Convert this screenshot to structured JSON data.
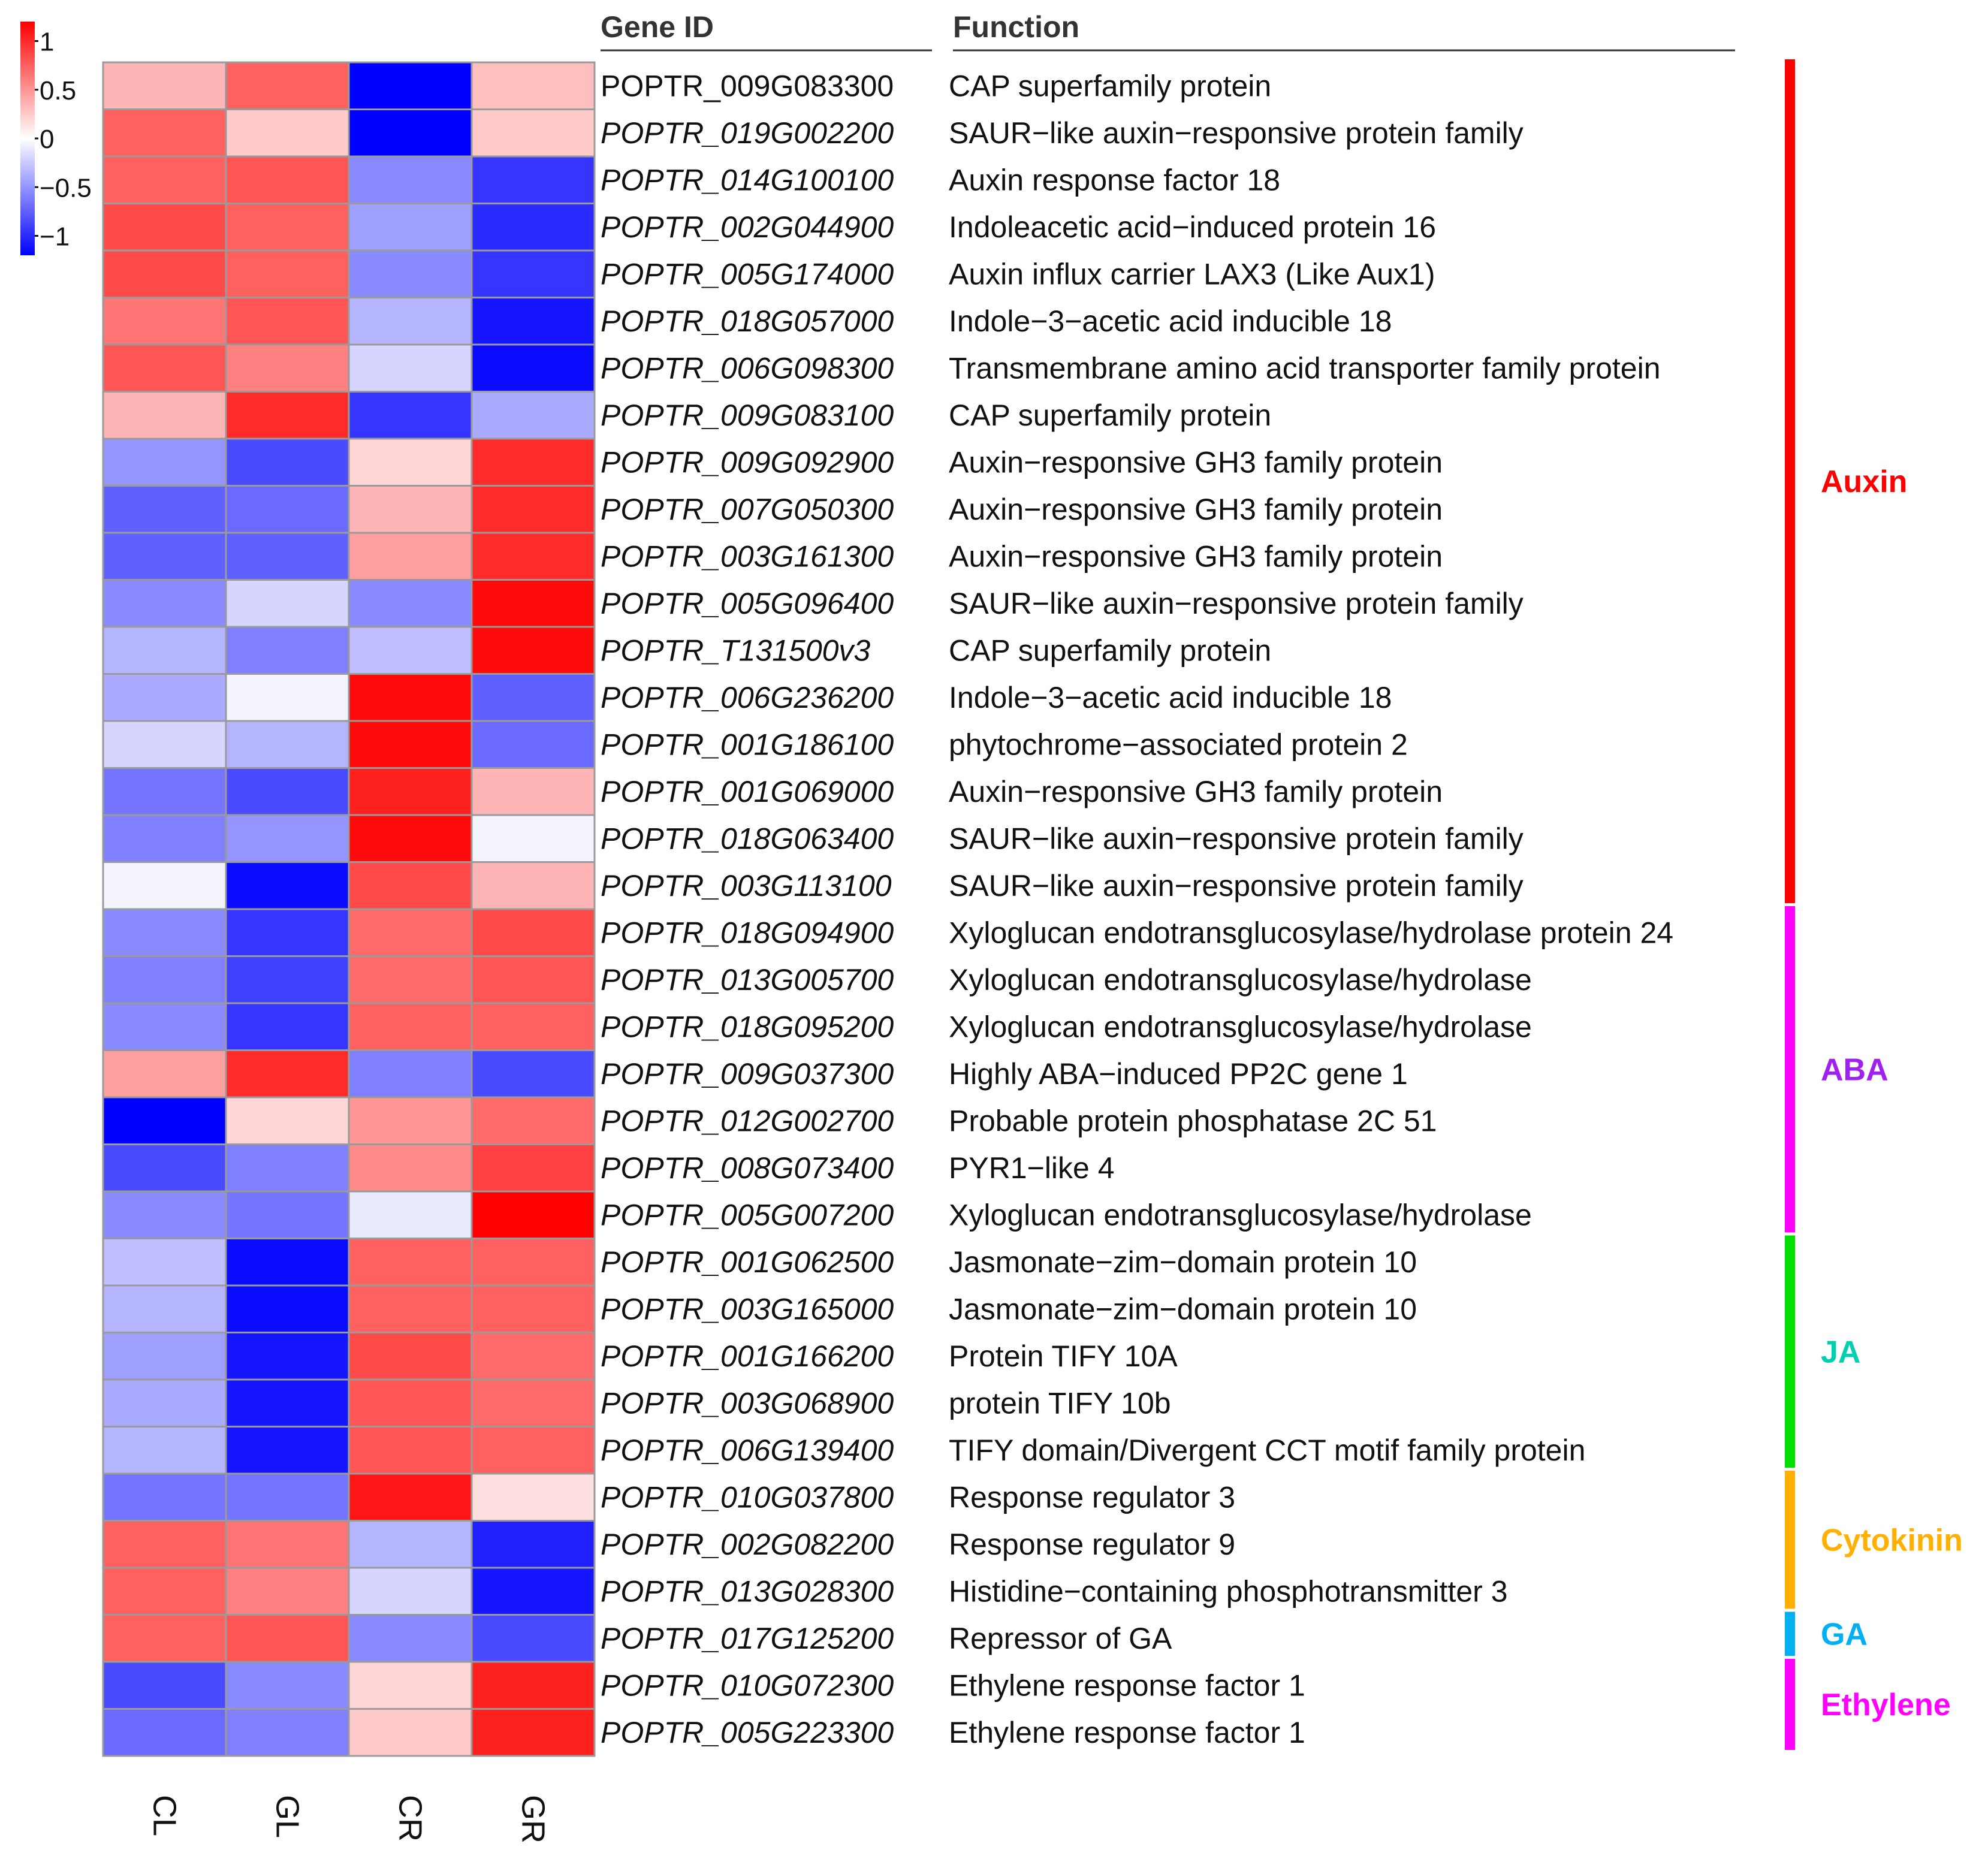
{
  "chart_data": {
    "type": "heatmap",
    "columns": [
      "CL",
      "GL",
      "CR",
      "GR"
    ],
    "header": {
      "gene_id": "Gene ID",
      "function": "Function"
    },
    "legend": {
      "ticks": [
        "1",
        "0.5",
        "0",
        "−0.5",
        "−1"
      ],
      "range": [
        -1.2,
        1.2
      ],
      "low_color": "#0000ff",
      "mid_color": "#ffffff",
      "high_color": "#ff0000"
    },
    "rows": [
      {
        "gene_id": "POPTR_009G083300",
        "italic": false,
        "function": "CAP superfamily protein",
        "values": [
          0.35,
          0.75,
          -1.2,
          0.3
        ]
      },
      {
        "gene_id": "POPTR_019G002200",
        "italic": true,
        "function": "SAUR−like auxin−responsive protein family",
        "values": [
          0.75,
          0.25,
          -1.2,
          0.25
        ]
      },
      {
        "gene_id": "POPTR_014G100100",
        "italic": true,
        "function": "Auxin response factor 18",
        "values": [
          0.75,
          0.8,
          -0.55,
          -0.95
        ]
      },
      {
        "gene_id": "POPTR_002G044900",
        "italic": true,
        "function": "Indoleacetic acid−induced protein 16",
        "values": [
          0.85,
          0.75,
          -0.45,
          -1.0
        ]
      },
      {
        "gene_id": "POPTR_005G174000",
        "italic": true,
        "function": "Auxin influx carrier LAX3 (Like Aux1)",
        "values": [
          0.85,
          0.75,
          -0.55,
          -0.95
        ]
      },
      {
        "gene_id": "POPTR_018G057000",
        "italic": true,
        "function": "Indole−3−acetic acid inducible 18",
        "values": [
          0.65,
          0.8,
          -0.35,
          -1.1
        ]
      },
      {
        "gene_id": "POPTR_006G098300",
        "italic": true,
        "function": "Transmembrane amino acid transporter family protein",
        "values": [
          0.8,
          0.6,
          -0.2,
          -1.15
        ]
      },
      {
        "gene_id": "POPTR_009G083100",
        "italic": true,
        "function": "CAP superfamily protein",
        "values": [
          0.35,
          1.0,
          -0.95,
          -0.4
        ]
      },
      {
        "gene_id": "POPTR_009G092900",
        "italic": true,
        "function": "Auxin−responsive GH3 family protein",
        "values": [
          -0.5,
          -0.85,
          0.2,
          1.0
        ]
      },
      {
        "gene_id": "POPTR_007G050300",
        "italic": true,
        "function": "Auxin−responsive GH3 family protein",
        "values": [
          -0.75,
          -0.7,
          0.35,
          1.0
        ]
      },
      {
        "gene_id": "POPTR_003G161300",
        "italic": true,
        "function": "Auxin−responsive GH3 family protein",
        "values": [
          -0.75,
          -0.75,
          0.45,
          1.0
        ]
      },
      {
        "gene_id": "POPTR_005G096400",
        "italic": true,
        "function": "SAUR−like auxin−responsive protein family",
        "values": [
          -0.55,
          -0.2,
          -0.55,
          1.15
        ]
      },
      {
        "gene_id": "POPTR_T131500v3",
        "italic": true,
        "function": "CAP superfamily protein",
        "values": [
          -0.35,
          -0.6,
          -0.3,
          1.15
        ]
      },
      {
        "gene_id": "POPTR_006G236200",
        "italic": true,
        "function": "Indole−3−acetic acid inducible 18",
        "values": [
          -0.4,
          -0.05,
          1.15,
          -0.75
        ]
      },
      {
        "gene_id": "POPTR_001G186100",
        "italic": true,
        "function": "phytochrome−associated protein 2",
        "values": [
          -0.2,
          -0.35,
          1.15,
          -0.7
        ]
      },
      {
        "gene_id": "POPTR_001G069000",
        "italic": true,
        "function": "Auxin−responsive GH3 family protein",
        "values": [
          -0.65,
          -0.85,
          1.05,
          0.35
        ]
      },
      {
        "gene_id": "POPTR_018G063400",
        "italic": true,
        "function": "SAUR−like auxin−responsive protein family",
        "values": [
          -0.6,
          -0.5,
          1.15,
          -0.05
        ]
      },
      {
        "gene_id": "POPTR_003G113100",
        "italic": true,
        "function": "SAUR−like auxin−responsive protein family",
        "values": [
          -0.05,
          -1.15,
          0.85,
          0.35
        ]
      },
      {
        "gene_id": "POPTR_018G094900",
        "italic": true,
        "function": "Xyloglucan endotransglucosylase/hydrolase protein 24",
        "values": [
          -0.55,
          -0.95,
          0.7,
          0.85
        ]
      },
      {
        "gene_id": "POPTR_013G005700",
        "italic": true,
        "function": "Xyloglucan endotransglucosylase/hydrolase",
        "values": [
          -0.6,
          -0.9,
          0.7,
          0.8
        ]
      },
      {
        "gene_id": "POPTR_018G095200",
        "italic": true,
        "function": "Xyloglucan endotransglucosylase/hydrolase",
        "values": [
          -0.55,
          -0.95,
          0.75,
          0.75
        ]
      },
      {
        "gene_id": "POPTR_009G037300",
        "italic": true,
        "function": "Highly ABA−induced PP2C gene 1",
        "values": [
          0.45,
          1.0,
          -0.6,
          -0.85
        ]
      },
      {
        "gene_id": "POPTR_012G002700",
        "italic": true,
        "function": "Probable protein phosphatase 2C 51",
        "values": [
          -1.2,
          0.2,
          0.5,
          0.7
        ]
      },
      {
        "gene_id": "POPTR_008G073400",
        "italic": true,
        "function": "PYR1−like 4",
        "values": [
          -0.85,
          -0.6,
          0.55,
          0.9
        ]
      },
      {
        "gene_id": "POPTR_005G007200",
        "italic": true,
        "function": "Xyloglucan endotransglucosylase/hydrolase",
        "values": [
          -0.55,
          -0.65,
          -0.1,
          1.2
        ]
      },
      {
        "gene_id": "POPTR_001G062500",
        "italic": true,
        "function": "Jasmonate−zim−domain protein 10",
        "values": [
          -0.3,
          -1.15,
          0.75,
          0.75
        ]
      },
      {
        "gene_id": "POPTR_003G165000",
        "italic": true,
        "function": "Jasmonate−zim−domain protein 10",
        "values": [
          -0.35,
          -1.15,
          0.75,
          0.75
        ]
      },
      {
        "gene_id": "POPTR_001G166200",
        "italic": true,
        "function": "Protein TIFY 10A",
        "values": [
          -0.45,
          -1.1,
          0.85,
          0.7
        ]
      },
      {
        "gene_id": "POPTR_003G068900",
        "italic": true,
        "function": "protein TIFY 10b",
        "values": [
          -0.4,
          -1.1,
          0.8,
          0.7
        ]
      },
      {
        "gene_id": "POPTR_006G139400",
        "italic": true,
        "function": "TIFY domain/Divergent CCT motif family protein",
        "values": [
          -0.35,
          -1.1,
          0.8,
          0.75
        ]
      },
      {
        "gene_id": "POPTR_010G037800",
        "italic": true,
        "function": "Response regulator 3",
        "values": [
          -0.65,
          -0.65,
          1.1,
          0.15
        ]
      },
      {
        "gene_id": "POPTR_002G082200",
        "italic": true,
        "function": "Response regulator 9",
        "values": [
          0.75,
          0.65,
          -0.35,
          -1.05
        ]
      },
      {
        "gene_id": "POPTR_013G028300",
        "italic": true,
        "function": "Histidine−containing phosphotransmitter 3",
        "values": [
          0.75,
          0.6,
          -0.2,
          -1.1
        ]
      },
      {
        "gene_id": "POPTR_017G125200",
        "italic": true,
        "function": "Repressor of GA",
        "values": [
          0.75,
          0.8,
          -0.55,
          -0.85
        ]
      },
      {
        "gene_id": "POPTR_010G072300",
        "italic": true,
        "function": "Ethylene response factor 1",
        "values": [
          -0.85,
          -0.55,
          0.2,
          1.05
        ]
      },
      {
        "gene_id": "POPTR_005G223300",
        "italic": true,
        "function": "Ethylene response factor 1",
        "values": [
          -0.7,
          -0.6,
          0.25,
          1.05
        ]
      }
    ],
    "groups": [
      {
        "label": "Auxin",
        "first_row": 0,
        "last_row": 17,
        "color": "#ff0000",
        "text_color": "#ff0000"
      },
      {
        "label": "ABA",
        "first_row": 18,
        "last_row": 24,
        "color": "#ff00ff",
        "text_color": "#a020f0"
      },
      {
        "label": "JA",
        "first_row": 25,
        "last_row": 29,
        "color": "#00e000",
        "text_color": "#00d0b0"
      },
      {
        "label": "Cytokinin",
        "first_row": 30,
        "last_row": 32,
        "color": "#ffb000",
        "text_color": "#ffb000"
      },
      {
        "label": "GA",
        "first_row": 33,
        "last_row": 33,
        "color": "#00b0f0",
        "text_color": "#00b0f0"
      },
      {
        "label": "Ethylene",
        "first_row": 34,
        "last_row": 35,
        "color": "#ff00ff",
        "text_color": "#ff00ff"
      }
    ]
  }
}
